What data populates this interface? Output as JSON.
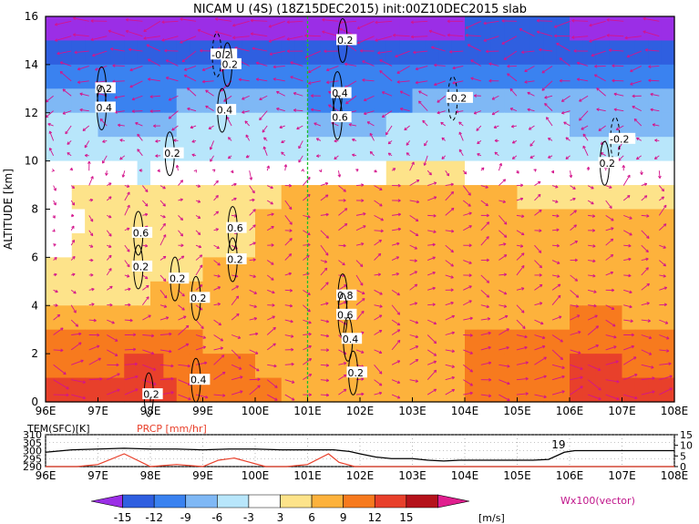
{
  "chart_data": {
    "type": "heatmap",
    "title": "NICAM U (4S) (18Z15DEC2015) init:00Z10DEC2015 slab",
    "ylabel": "ALTITUDE [km]",
    "xlim": [
      96,
      108
    ],
    "ylim": [
      0,
      16
    ],
    "x_ticks": [
      "96E",
      "97E",
      "98E",
      "99E",
      "100E",
      "101E",
      "102E",
      "103E",
      "104E",
      "105E",
      "106E",
      "107E",
      "108E"
    ],
    "y_ticks": [
      "0",
      "2",
      "4",
      "6",
      "8",
      "10",
      "12",
      "14",
      "16"
    ],
    "marker_line_lon": 101,
    "field": {
      "variable": "U",
      "unit": "[m/s]",
      "levels": [
        "-15",
        "-12",
        "-9",
        "-6",
        "-3",
        "3",
        "6",
        "9",
        "12",
        "15"
      ],
      "colors": [
        "#9b2ee6",
        "#2f5fe0",
        "#3a82f0",
        "#7fb8f5",
        "#b8e6fb",
        "#ffffff",
        "#fde38a",
        "#fdb23c",
        "#f77a1e",
        "#e8402b",
        "#b5121b",
        "#e01e8e"
      ],
      "layers": [
        {
          "alt": 15.5,
          "u": [
            -16,
            -15,
            -16,
            -15,
            -16,
            -15,
            -16,
            -16,
            -15,
            -14,
            -15,
            -16,
            -15
          ]
        },
        {
          "alt": 14.5,
          "u": [
            -13,
            -14,
            -13,
            -13,
            -14,
            -15,
            -13,
            -14,
            -13,
            -12,
            -13,
            -14,
            -13
          ]
        },
        {
          "alt": 13.5,
          "u": [
            -10,
            -11,
            -12,
            -11,
            -10,
            -12,
            -11,
            -12,
            -10,
            -9,
            -10,
            -11,
            -10
          ]
        },
        {
          "alt": 12.5,
          "u": [
            -7,
            -9,
            -10,
            -8,
            -7,
            -9,
            -10,
            -9,
            -7,
            -6,
            -8,
            -9,
            -8
          ]
        },
        {
          "alt": 11.5,
          "u": [
            -5,
            -6,
            -7,
            -5,
            -4,
            -6,
            -7,
            -5,
            -4,
            -5,
            -6,
            -7,
            -6
          ]
        },
        {
          "alt": 10.5,
          "u": [
            -3.5,
            -4,
            -5,
            -3.5,
            -3,
            -4,
            -4,
            -3,
            -3.5,
            -4,
            -4,
            -5,
            -4
          ]
        },
        {
          "alt": 9.5,
          "u": [
            1,
            0,
            -3.5,
            1,
            2,
            0,
            2,
            4,
            3,
            2,
            1,
            0,
            1
          ]
        },
        {
          "alt": 8.5,
          "u": [
            2,
            4,
            5,
            4,
            5,
            7,
            7,
            9,
            7,
            6,
            5,
            6,
            4
          ]
        },
        {
          "alt": 7.5,
          "u": [
            1,
            4,
            5,
            4,
            6,
            7,
            9,
            8,
            8,
            7,
            6,
            8,
            6
          ]
        },
        {
          "alt": 6.5,
          "u": [
            2,
            4,
            5,
            5,
            6,
            7,
            7,
            7,
            8,
            6,
            7,
            7,
            6
          ]
        },
        {
          "alt": 5.5,
          "u": [
            3,
            4,
            5,
            6,
            6,
            6,
            6,
            7,
            8,
            7,
            7,
            7,
            6
          ]
        },
        {
          "alt": 4.5,
          "u": [
            4,
            5,
            6,
            6,
            7,
            7,
            8,
            7,
            8,
            7,
            8,
            8,
            7
          ]
        },
        {
          "alt": 3.5,
          "u": [
            6,
            7,
            8,
            7,
            7,
            8,
            7,
            8,
            9,
            8,
            9,
            9,
            8
          ]
        },
        {
          "alt": 2.5,
          "u": [
            9,
            10,
            11,
            9,
            8,
            8,
            7,
            8,
            9,
            10,
            10,
            10,
            9
          ]
        },
        {
          "alt": 1.5,
          "u": [
            12,
            11,
            13,
            10,
            9,
            8,
            7,
            8,
            9,
            11,
            12,
            12,
            11
          ]
        },
        {
          "alt": 0.5,
          "u": [
            15,
            12,
            13,
            11,
            10,
            8,
            7,
            8,
            9,
            11,
            12,
            13,
            12
          ]
        }
      ]
    },
    "contour_labels": [
      {
        "lon": 99.2,
        "alt": 14.4,
        "text": "-0.2"
      },
      {
        "lon": 99.4,
        "alt": 14.0,
        "text": "0.2"
      },
      {
        "lon": 97.0,
        "alt": 13.0,
        "text": "0.2"
      },
      {
        "lon": 97.0,
        "alt": 12.2,
        "text": "0.4"
      },
      {
        "lon": 98.3,
        "alt": 10.3,
        "text": "0.2"
      },
      {
        "lon": 99.3,
        "alt": 12.1,
        "text": "0.4"
      },
      {
        "lon": 97.7,
        "alt": 7.0,
        "text": "0.6"
      },
      {
        "lon": 97.7,
        "alt": 5.6,
        "text": "0.2"
      },
      {
        "lon": 98.4,
        "alt": 5.1,
        "text": "0.2"
      },
      {
        "lon": 99.5,
        "alt": 7.2,
        "text": "0.6"
      },
      {
        "lon": 99.5,
        "alt": 5.9,
        "text": "0.2"
      },
      {
        "lon": 98.8,
        "alt": 4.3,
        "text": "0.2"
      },
      {
        "lon": 98.8,
        "alt": 0.9,
        "text": "0.4"
      },
      {
        "lon": 97.9,
        "alt": 0.3,
        "text": "0.2"
      },
      {
        "lon": 101.6,
        "alt": 15.0,
        "text": "0.2"
      },
      {
        "lon": 101.5,
        "alt": 12.8,
        "text": "0.4"
      },
      {
        "lon": 101.5,
        "alt": 11.8,
        "text": "0.6"
      },
      {
        "lon": 101.6,
        "alt": 4.4,
        "text": "0.8"
      },
      {
        "lon": 101.6,
        "alt": 3.6,
        "text": "0.6"
      },
      {
        "lon": 101.7,
        "alt": 2.6,
        "text": "0.4"
      },
      {
        "lon": 101.8,
        "alt": 1.2,
        "text": "0.2"
      },
      {
        "lon": 103.7,
        "alt": 12.6,
        "text": "-0.2"
      },
      {
        "lon": 106.8,
        "alt": 10.9,
        "text": "-0.2"
      },
      {
        "lon": 106.6,
        "alt": 9.9,
        "text": "0.2"
      }
    ],
    "surface_panel": {
      "labels": {
        "tem": "TEM(SFC)[K]",
        "prcp": "PRCP [mm/hr]"
      },
      "left_ticks": [
        "310",
        "305",
        "300",
        "295",
        "290"
      ],
      "left_range": [
        290,
        310
      ],
      "right_ticks": [
        "15",
        "10",
        "5",
        "0"
      ],
      "right_range": [
        0,
        15
      ],
      "annotation": "19",
      "annotation_lon": 105.9,
      "tem_lon": [
        96,
        96.5,
        97,
        97.5,
        98,
        98.5,
        99,
        99.5,
        100,
        100.5,
        101,
        101.5,
        101.8,
        102,
        102.3,
        102.6,
        103,
        103.3,
        103.6,
        103.9,
        104.2,
        104.6,
        105,
        105.3,
        105.6,
        105.9,
        106.1,
        106.5,
        107,
        107.5,
        108
      ],
      "tem_k": [
        299,
        300.5,
        301,
        301.5,
        301,
        301,
        300.5,
        301,
        301,
        300.5,
        300.5,
        300.5,
        299.5,
        298,
        296,
        295,
        295,
        294,
        293.5,
        294,
        294,
        294,
        294,
        294,
        294.5,
        299,
        300,
        300,
        300,
        300,
        300
      ],
      "prcp_lon": [
        96,
        96.6,
        97,
        97.5,
        98,
        98.5,
        99,
        99.3,
        99.6,
        99.9,
        100.2,
        100.6,
        101,
        101.4,
        101.6,
        101.9,
        102.2,
        103,
        104,
        105,
        106,
        107,
        108
      ],
      "prcp_mmhr": [
        0,
        0,
        1,
        6,
        0,
        1,
        0,
        3,
        4,
        2,
        0,
        0,
        1,
        6,
        2,
        0,
        0,
        0,
        0,
        0,
        0,
        0,
        0
      ]
    },
    "colorbar": {
      "tick_labels": [
        "-15",
        "-12",
        "-9",
        "-6",
        "-3",
        "3",
        "6",
        "9",
        "12",
        "15"
      ],
      "unit": "[m/s]",
      "vector_note": "Wx100(vector)"
    }
  }
}
